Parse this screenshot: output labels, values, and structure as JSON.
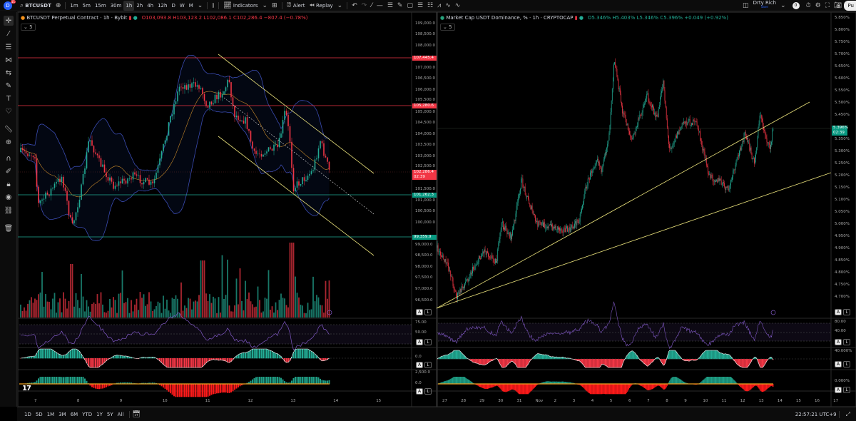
{
  "toolbar": {
    "avatar_letter": "D",
    "notif_count": "11",
    "symbol": "BTCUSDT",
    "intervals": [
      "1m",
      "5m",
      "15m",
      "30m",
      "1h",
      "2h",
      "4h",
      "12h",
      "D",
      "W",
      "M"
    ],
    "active_interval": "1h",
    "indicators_label": "Indicators",
    "alert_label": "Alert",
    "replay_label": "Replay",
    "layout_name": "Drty Rich",
    "layout_sub": "Save",
    "badge_count": "0",
    "publish_label": "Pu"
  },
  "left_chart": {
    "title": "BTCUSDT Perpetual Contract · 1h · Bybit",
    "open": "O103,093.8",
    "high": "H103,123.2",
    "low": "L102,086.1",
    "close": "C102,286.4",
    "change": "−807.4 (−0.78%)",
    "indicator_count": "5",
    "price_labels": [
      "109,000.0",
      "108,500.0",
      "108,000.0",
      "107,000.0",
      "106,500.0",
      "106,000.0",
      "105,500.0",
      "105,000.0",
      "104,500.0",
      "104,000.0",
      "103,500.0",
      "103,000.0",
      "102,500.0",
      "101,500.0",
      "101,000.0",
      "100,500.0",
      "100,000.0",
      "99,000.0",
      "98,500.0",
      "98,000.0",
      "97,500.0",
      "97,000.0",
      "96,500.0"
    ],
    "tags": [
      {
        "text": "107,445.4",
        "color": "#f23645"
      },
      {
        "text": "105,280.6",
        "color": "#f23645"
      },
      {
        "text": "102,286.4",
        "sub": "02:39",
        "color": "#f23645"
      },
      {
        "text": "101,262.3",
        "color": "#089981"
      },
      {
        "text": "99,359.9",
        "color": "#089981"
      }
    ],
    "rsi_labels": [
      "75.00",
      "50.00"
    ],
    "macd_labels": [
      "0.0"
    ],
    "osc_labels": [
      "2,500.0",
      "0.0"
    ],
    "time_labels": [
      "7",
      "8",
      "9",
      "10",
      "11",
      "12",
      "13",
      "14",
      "15"
    ]
  },
  "right_chart": {
    "title": "Market Cap USDT Dominance, % · 1h · CRYPTOCAP",
    "open": "O5.346%",
    "high": "H5.403%",
    "low": "L5.346%",
    "close": "C5.396%",
    "change": "+0.049 (+0.92%)",
    "indicator_count": "5",
    "price_labels": [
      "5.850%",
      "5.800%",
      "5.750%",
      "5.700%",
      "5.650%",
      "5.600%",
      "5.550%",
      "5.500%",
      "5.450%",
      "5.350%",
      "5.300%",
      "5.250%",
      "5.200%",
      "5.150%",
      "5.100%",
      "5.050%",
      "5.000%",
      "4.950%",
      "4.900%",
      "4.850%",
      "4.800%",
      "4.750%",
      "4.700%"
    ],
    "tag": {
      "text": "5.396%",
      "sub": "02:39",
      "color": "#089981"
    },
    "rsi_labels": [
      "80.00",
      "40.00"
    ],
    "macd_labels": [
      "40.000%"
    ],
    "osc_labels": [
      "0.000%"
    ],
    "time_labels": [
      "27",
      "28",
      "29",
      "30",
      "31",
      "Nov",
      "2",
      "3",
      "4",
      "5",
      "6",
      "7",
      "8",
      "9",
      "10",
      "11",
      "12",
      "13",
      "14",
      "15",
      "16",
      "17"
    ]
  },
  "scale_buttons": {
    "auto": "A",
    "log": "L"
  },
  "bottom": {
    "ranges": [
      "1D",
      "5D",
      "1M",
      "3M",
      "6M",
      "YTD",
      "1Y",
      "5Y",
      "All"
    ],
    "clock": "22:57:21 UTC+9"
  },
  "watermark": "TV",
  "colors": {
    "up": "#22ab94",
    "down": "#f23645",
    "trendline": "#e8e07a",
    "bands": "#3a4bb0",
    "basis": "#c88a2a",
    "rsi": "#7e57c2"
  }
}
